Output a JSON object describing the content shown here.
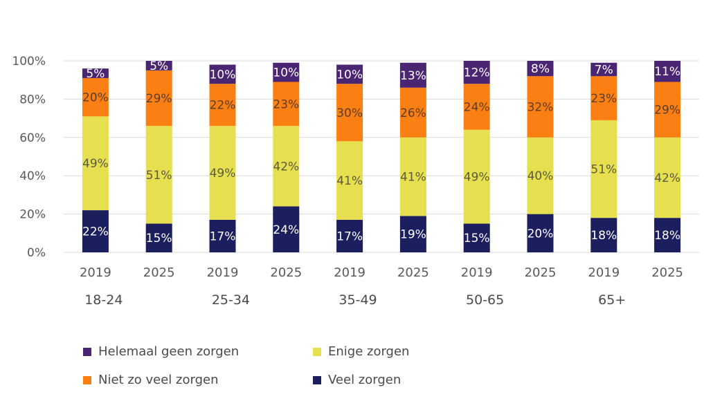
{
  "chart_data": {
    "type": "bar",
    "stacked": true,
    "title": "",
    "xlabel": "",
    "ylabel": "",
    "ylim": [
      0,
      100
    ],
    "y_ticks": [
      "0%",
      "20%",
      "40%",
      "60%",
      "80%",
      "100%"
    ],
    "groups": [
      "18-24",
      "25-34",
      "35-49",
      "50-65",
      "65+"
    ],
    "categories": [
      "2019",
      "2025",
      "2019",
      "2025",
      "2019",
      "2025",
      "2019",
      "2025",
      "2019",
      "2025"
    ],
    "series": [
      {
        "name": "Veel zorgen",
        "color": "#1b1f5e",
        "label_color": "#ffffff",
        "values": [
          22,
          15,
          17,
          24,
          17,
          19,
          15,
          20,
          18,
          18
        ],
        "labels": [
          "22%",
          "15%",
          "17%",
          "24%",
          "17%",
          "19%",
          "15%",
          "20%",
          "18%",
          "18%"
        ]
      },
      {
        "name": "Enige zorgen",
        "color": "#e6df4f",
        "label_color": "#5a5a3c",
        "values": [
          49,
          51,
          49,
          42,
          41,
          41,
          49,
          40,
          51,
          42
        ],
        "labels": [
          "49%",
          "51%",
          "49%",
          "42%",
          "41%",
          "41%",
          "49%",
          "40%",
          "51%",
          "42%"
        ]
      },
      {
        "name": "Niet zo veel zorgen",
        "color": "#fb7f12",
        "label_color": "#5a3c2a",
        "values": [
          20,
          29,
          22,
          23,
          30,
          26,
          24,
          32,
          23,
          29
        ],
        "labels": [
          "20%",
          "29%",
          "22%",
          "23%",
          "30%",
          "26%",
          "24%",
          "32%",
          "23%",
          "29%"
        ]
      },
      {
        "name": "Helemaal geen zorgen",
        "color": "#4a2672",
        "label_color": "#ffffff",
        "values": [
          5,
          5,
          10,
          10,
          10,
          13,
          12,
          8,
          7,
          11
        ],
        "labels": [
          "5%",
          "5%",
          "10%",
          "10%",
          "10%",
          "13%",
          "12%",
          "8%",
          "7%",
          "11%"
        ]
      }
    ],
    "grid": true,
    "legend": {
      "placement": "bottom",
      "entries": [
        {
          "label": "Helemaal geen zorgen",
          "color": "#4a2672"
        },
        {
          "label": "Enige zorgen",
          "color": "#e6df4f"
        },
        {
          "label": "Niet zo veel zorgen",
          "color": "#fb7f12"
        },
        {
          "label": "Veel zorgen",
          "color": "#1b1f5e"
        }
      ]
    }
  }
}
